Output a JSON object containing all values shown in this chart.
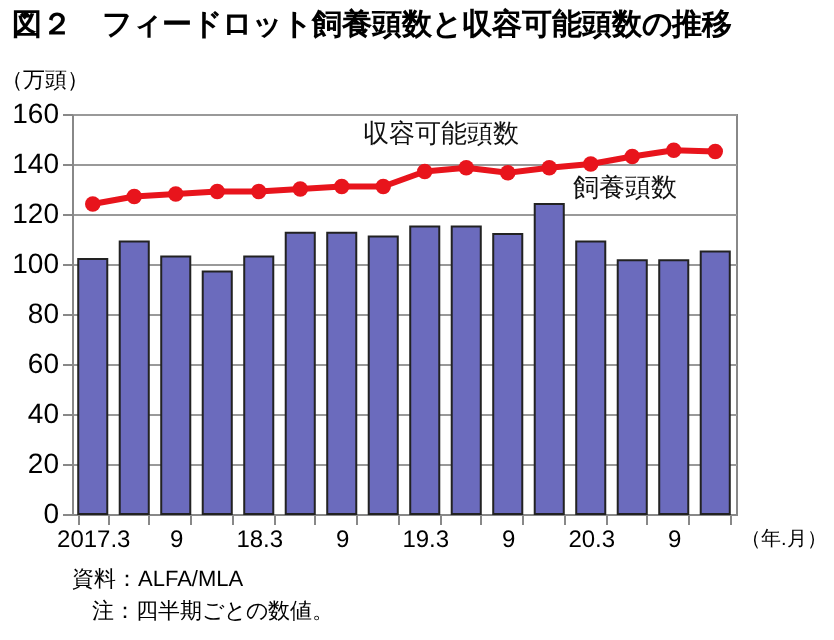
{
  "chart_data": {
    "type": "bar",
    "title": "図２　フィードロット飼養頭数と収容可能頭数の推移",
    "xlabel": "（年.月）",
    "ylabel": "（万頭）",
    "categories": [
      "2017.3",
      null,
      "9",
      null,
      "18.3",
      null,
      "9",
      null,
      "19.3",
      null,
      "9",
      null,
      "20.3",
      null,
      "9",
      null
    ],
    "series": [
      {
        "name": "飼養頭数",
        "color": "#6b6bbd",
        "values": [
          102,
          109,
          103,
          97,
          103,
          112.5,
          112.5,
          111,
          115,
          115,
          112,
          124,
          109,
          101.5,
          101.5,
          105
        ]
      },
      {
        "name": "収容可能頭数",
        "type": "line",
        "color": "#e8141c",
        "values": [
          124,
          127,
          128,
          129,
          129,
          130,
          131,
          131,
          137,
          138.5,
          136.5,
          138.5,
          140,
          143,
          145.5,
          145
        ]
      }
    ],
    "ylim": [
      0,
      160
    ],
    "yticks": [
      0,
      20,
      40,
      60,
      80,
      100,
      120,
      140,
      160
    ],
    "grid": "y",
    "marker": "circle",
    "line_style": "solid",
    "annotations": [
      "資料：ALFA/MLA",
      "注：四半期ごとの数値。"
    ]
  }
}
